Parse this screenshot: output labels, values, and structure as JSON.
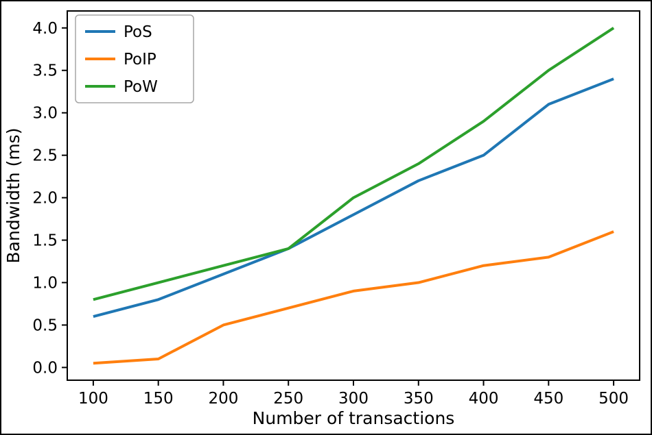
{
  "figure": {
    "frame_color": "#000000",
    "background_color": "#ffffff"
  },
  "chart_data": {
    "type": "line",
    "title": "",
    "xlabel": "Number of transactions",
    "ylabel": "Bandwidth (ms)",
    "x": [
      100,
      150,
      200,
      250,
      300,
      350,
      400,
      450,
      500
    ],
    "series": [
      {
        "name": "PoS",
        "color": "#1f77b4",
        "values": [
          0.6,
          0.8,
          1.1,
          1.4,
          1.8,
          2.2,
          2.5,
          3.1,
          3.4
        ]
      },
      {
        "name": "PoIP",
        "color": "#ff7f0e",
        "values": [
          0.05,
          0.1,
          0.5,
          0.7,
          0.9,
          1.0,
          1.2,
          1.3,
          1.6
        ]
      },
      {
        "name": "PoW",
        "color": "#2ca02c",
        "values": [
          0.8,
          1.0,
          1.2,
          1.4,
          2.0,
          2.4,
          2.9,
          3.5,
          4.0
        ]
      }
    ],
    "xticks": [
      100,
      150,
      200,
      250,
      300,
      350,
      400,
      450,
      500
    ],
    "yticks": [
      0.0,
      0.5,
      1.0,
      1.5,
      2.0,
      2.5,
      3.0,
      3.5,
      4.0
    ],
    "xlim": [
      80,
      520
    ],
    "ylim": [
      -0.15,
      4.2
    ],
    "grid": false,
    "legend_position": "upper left",
    "axis_color": "#000000"
  }
}
